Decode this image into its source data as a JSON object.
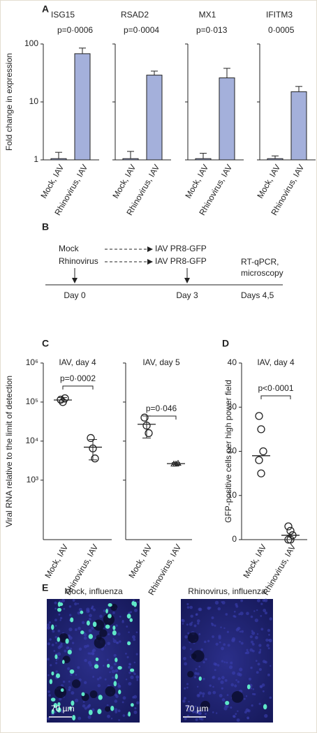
{
  "panel_labels": [
    "A",
    "B",
    "C",
    "D",
    "E"
  ],
  "chart_data": [
    {
      "type": "bar",
      "title": "ISG15",
      "annotation": "p=0·0006",
      "y_label": "Fold change in expression",
      "categories": [
        "Mock, IAV",
        "Rhinovirus, IAV"
      ],
      "values": [
        1.05,
        68
      ],
      "errors": [
        0.3,
        17
      ],
      "color": "#a4b0db",
      "log_scale": true,
      "ylim": [
        1,
        100
      ],
      "yticks": [
        1,
        10,
        100
      ],
      "show_tick_labels": true
    },
    {
      "type": "bar",
      "title": "RSAD2",
      "annotation": "p=0·0004",
      "categories": [
        "Mock, IAV",
        "Rhinovirus, IAV"
      ],
      "values": [
        1.05,
        29
      ],
      "errors": [
        0.35,
        5
      ],
      "color": "#a4b0db",
      "log_scale": true,
      "ylim": [
        1,
        100
      ],
      "yticks": [
        1,
        10,
        100
      ],
      "show_tick_labels": false
    },
    {
      "type": "bar",
      "title": "MX1",
      "annotation": "p=0·013",
      "categories": [
        "Mock, IAV",
        "Rhinovirus, IAV"
      ],
      "values": [
        1.05,
        26
      ],
      "errors": [
        0.25,
        12
      ],
      "color": "#a4b0db",
      "log_scale": true,
      "ylim": [
        1,
        100
      ],
      "yticks": [
        1,
        10,
        100
      ],
      "show_tick_labels": false
    },
    {
      "type": "bar",
      "title": "IFITM3",
      "annotation": "0·0005",
      "categories": [
        "Mock, IAV",
        "Rhinovirus, IAV"
      ],
      "values": [
        1.05,
        15
      ],
      "errors": [
        0.12,
        3.5
      ],
      "color": "#a4b0db",
      "log_scale": true,
      "ylim": [
        1,
        100
      ],
      "yticks": [
        1,
        10,
        100
      ],
      "show_tick_labels": false
    },
    {
      "type": "dot",
      "title": "IAV, day 4",
      "annotation": "p=0·0002",
      "y_label": "Viral RNA relative to the limit of detection",
      "categories": [
        "Mock, IAV",
        "Rhinovirus, IAV"
      ],
      "points": [
        [
          115000,
          100000,
          125000
        ],
        [
          12000,
          6500,
          3600
        ]
      ],
      "means": [
        113000,
        7000
      ],
      "ranges": [
        [
          100000,
          130000
        ],
        [
          3300,
          11000
        ]
      ],
      "markers": [
        "circle",
        "circle"
      ],
      "log_scale": true,
      "ylim": [
        30,
        1000000
      ],
      "yticks": [
        {
          "value": 1000,
          "label": "10³"
        },
        {
          "value": 10000,
          "label": "10⁴"
        },
        {
          "value": 100000,
          "label": "10⁵"
        },
        {
          "value": 1000000,
          "label": "10⁶"
        }
      ],
      "show_tick_labels": true
    },
    {
      "type": "dot",
      "title": "IAV, day 5",
      "annotation": "p=0·046",
      "categories": [
        "Mock, IAV",
        "Rhinovirus, IAV"
      ],
      "points": [
        [
          40000,
          25000,
          16000
        ],
        [
          2600,
          2600,
          2700
        ]
      ],
      "means": [
        27000,
        2650
      ],
      "ranges": [
        [
          12000,
          44000
        ],
        [
          2500,
          2800
        ]
      ],
      "markers": [
        "circle",
        "triangle"
      ],
      "log_scale": true,
      "ylim": [
        30,
        1000000
      ],
      "yticks": [
        1000,
        10000,
        100000,
        1000000
      ],
      "show_tick_labels": false
    },
    {
      "type": "dot",
      "title": "IAV, day 4",
      "annotation": "p<0·0001",
      "y_label": "GFP-positive cells per high power field",
      "categories": [
        "Mock, IAV",
        "Rhinovirus, IAV"
      ],
      "points": [
        [
          28,
          25,
          20,
          18,
          15
        ],
        [
          3,
          2,
          1,
          0,
          0
        ]
      ],
      "means": [
        19,
        1
      ],
      "markers": [
        "circle",
        "circle"
      ],
      "log_scale": false,
      "ylim": [
        0,
        40
      ],
      "yticks": [
        0,
        10,
        20,
        30,
        40
      ],
      "show_tick_labels": true
    }
  ],
  "timeline": {
    "groups": [
      "Mock",
      "Rhinovirus"
    ],
    "infection": [
      "IAV PR8-GFP",
      "IAV PR8-GFP"
    ],
    "readout": [
      "RT-qPCR,",
      "microscopy"
    ],
    "days": [
      "Day 0",
      "Day 3",
      "Days 4,5"
    ]
  },
  "images": {
    "titles": [
      "Mock, influenza",
      "Rhinovirus, influenza"
    ],
    "scale_bars": [
      "70 µm",
      "70 µm"
    ]
  }
}
